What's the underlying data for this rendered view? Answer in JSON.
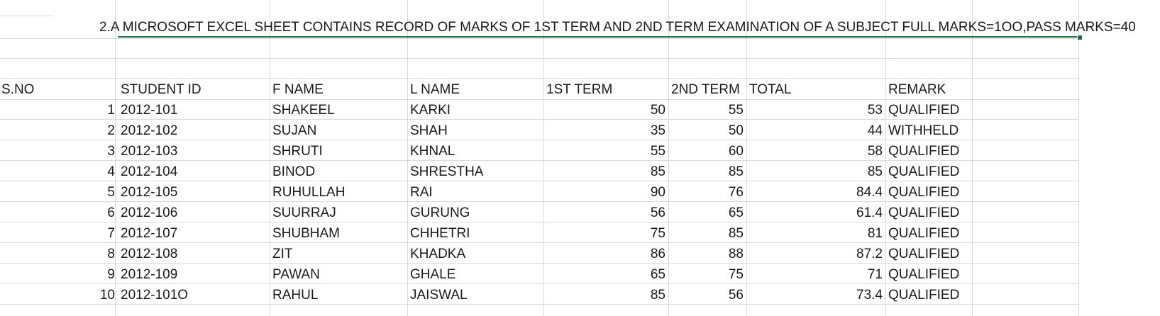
{
  "sheet": {
    "title": "2.A MICROSOFT EXCEL SHEET CONTAINS RECORD OF MARKS OF 1ST TERM AND 2ND TERM EXAMINATION OF A SUBJECT FULL MARKS=1OO,PASS MARKS=40",
    "headers": {
      "sno": "S.NO",
      "student_id": "STUDENT ID",
      "fname": "F NAME",
      "lname": "L NAME",
      "term1": "1ST TERM",
      "term2": "2ND TERM",
      "total": "TOTAL",
      "remark": "REMARK"
    },
    "rows": [
      {
        "sno": "1",
        "student_id": "2012-101",
        "fname": "SHAKEEL",
        "lname": "KARKI",
        "term1": "50",
        "term2": "55",
        "total": "53",
        "remark": "QUALIFIED"
      },
      {
        "sno": "2",
        "student_id": "2012-102",
        "fname": "SUJAN",
        "lname": "SHAH",
        "term1": "35",
        "term2": "50",
        "total": "44",
        "remark": "WITHHELD"
      },
      {
        "sno": "3",
        "student_id": "2012-103",
        "fname": "SHRUTI",
        "lname": "KHNAL",
        "term1": "55",
        "term2": "60",
        "total": "58",
        "remark": "QUALIFIED"
      },
      {
        "sno": "4",
        "student_id": "2012-104",
        "fname": "BINOD",
        "lname": "SHRESTHA",
        "term1": "85",
        "term2": "85",
        "total": "85",
        "remark": "QUALIFIED"
      },
      {
        "sno": "5",
        "student_id": "2012-105",
        "fname": "RUHULLAH",
        "lname": "RAI",
        "term1": "90",
        "term2": "76",
        "total": "84.4",
        "remark": "QUALIFIED"
      },
      {
        "sno": "6",
        "student_id": "2012-106",
        "fname": "SUURRAJ",
        "lname": "GURUNG",
        "term1": "56",
        "term2": "65",
        "total": "61.4",
        "remark": "QUALIFIED"
      },
      {
        "sno": "7",
        "student_id": "2012-107",
        "fname": "SHUBHAM",
        "lname": "CHHETRI",
        "term1": "75",
        "term2": "85",
        "total": "81",
        "remark": "QUALIFIED"
      },
      {
        "sno": "8",
        "student_id": "2012-108",
        "fname": "ZIT",
        "lname": "KHADKA",
        "term1": "86",
        "term2": "88",
        "total": "87.2",
        "remark": "QUALIFIED"
      },
      {
        "sno": "9",
        "student_id": "2012-109",
        "fname": "PAWAN",
        "lname": "GHALE",
        "term1": "65",
        "term2": "75",
        "total": "71",
        "remark": "QUALIFIED"
      },
      {
        "sno": "10",
        "student_id": "2012-101O",
        "fname": "RAHUL",
        "lname": "JAISWAL",
        "term1": "85",
        "term2": "56",
        "total": "73.4",
        "remark": "QUALIFIED"
      }
    ],
    "colors": {
      "gridline": "#d9d9d9",
      "selection": "#217346",
      "text": "#1a1a1a"
    }
  }
}
